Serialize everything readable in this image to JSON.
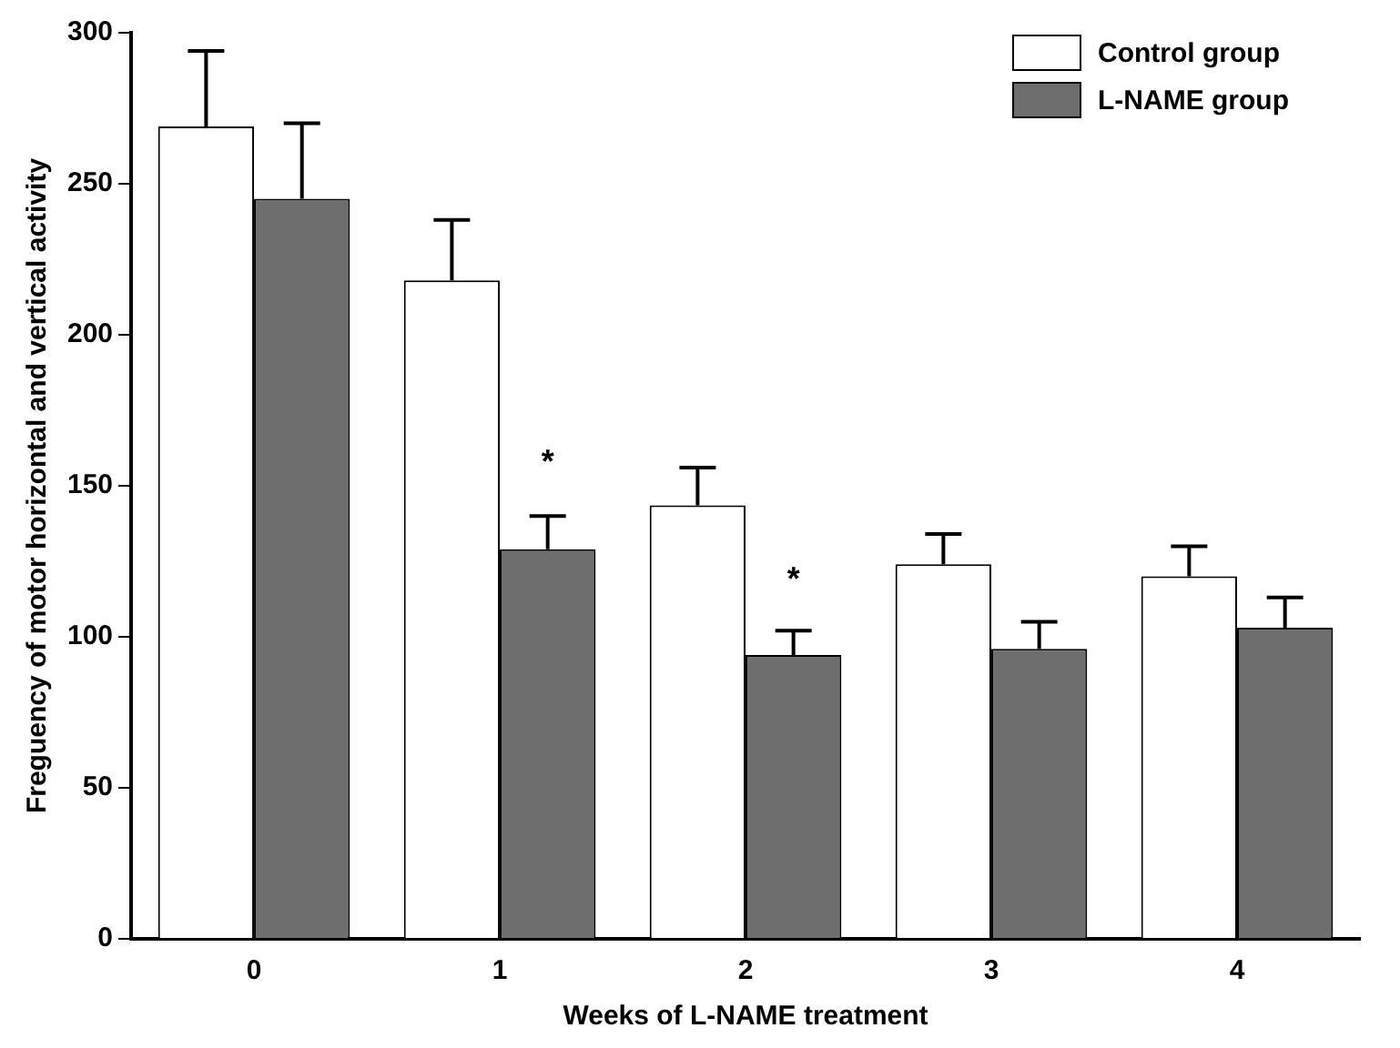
{
  "chart_data": {
    "type": "bar",
    "xlabel": "Weeks of L-NAME treatment",
    "ylabel": "Freguency of motor horizontal and vertical activity",
    "categories": [
      "0",
      "1",
      "2",
      "3",
      "4"
    ],
    "series": [
      {
        "name": "Control group",
        "color": "#ffffff",
        "values": [
          269,
          218,
          143.5,
          124,
          120
        ],
        "errors": [
          25,
          20,
          12.5,
          10,
          10
        ]
      },
      {
        "name": "L-NAME group",
        "color": "#6e6e6e",
        "values": [
          245,
          129,
          94,
          96,
          103
        ],
        "errors": [
          25,
          11,
          8,
          9,
          10
        ]
      }
    ],
    "ylim": [
      0,
      300
    ],
    "yticks": [
      0,
      50,
      100,
      150,
      200,
      250,
      300
    ],
    "grid": false,
    "legend": "top right",
    "annotations": [
      {
        "text": "*",
        "x": "1",
        "y": 160
      },
      {
        "text": "*",
        "x": "2",
        "y": 121
      }
    ]
  }
}
